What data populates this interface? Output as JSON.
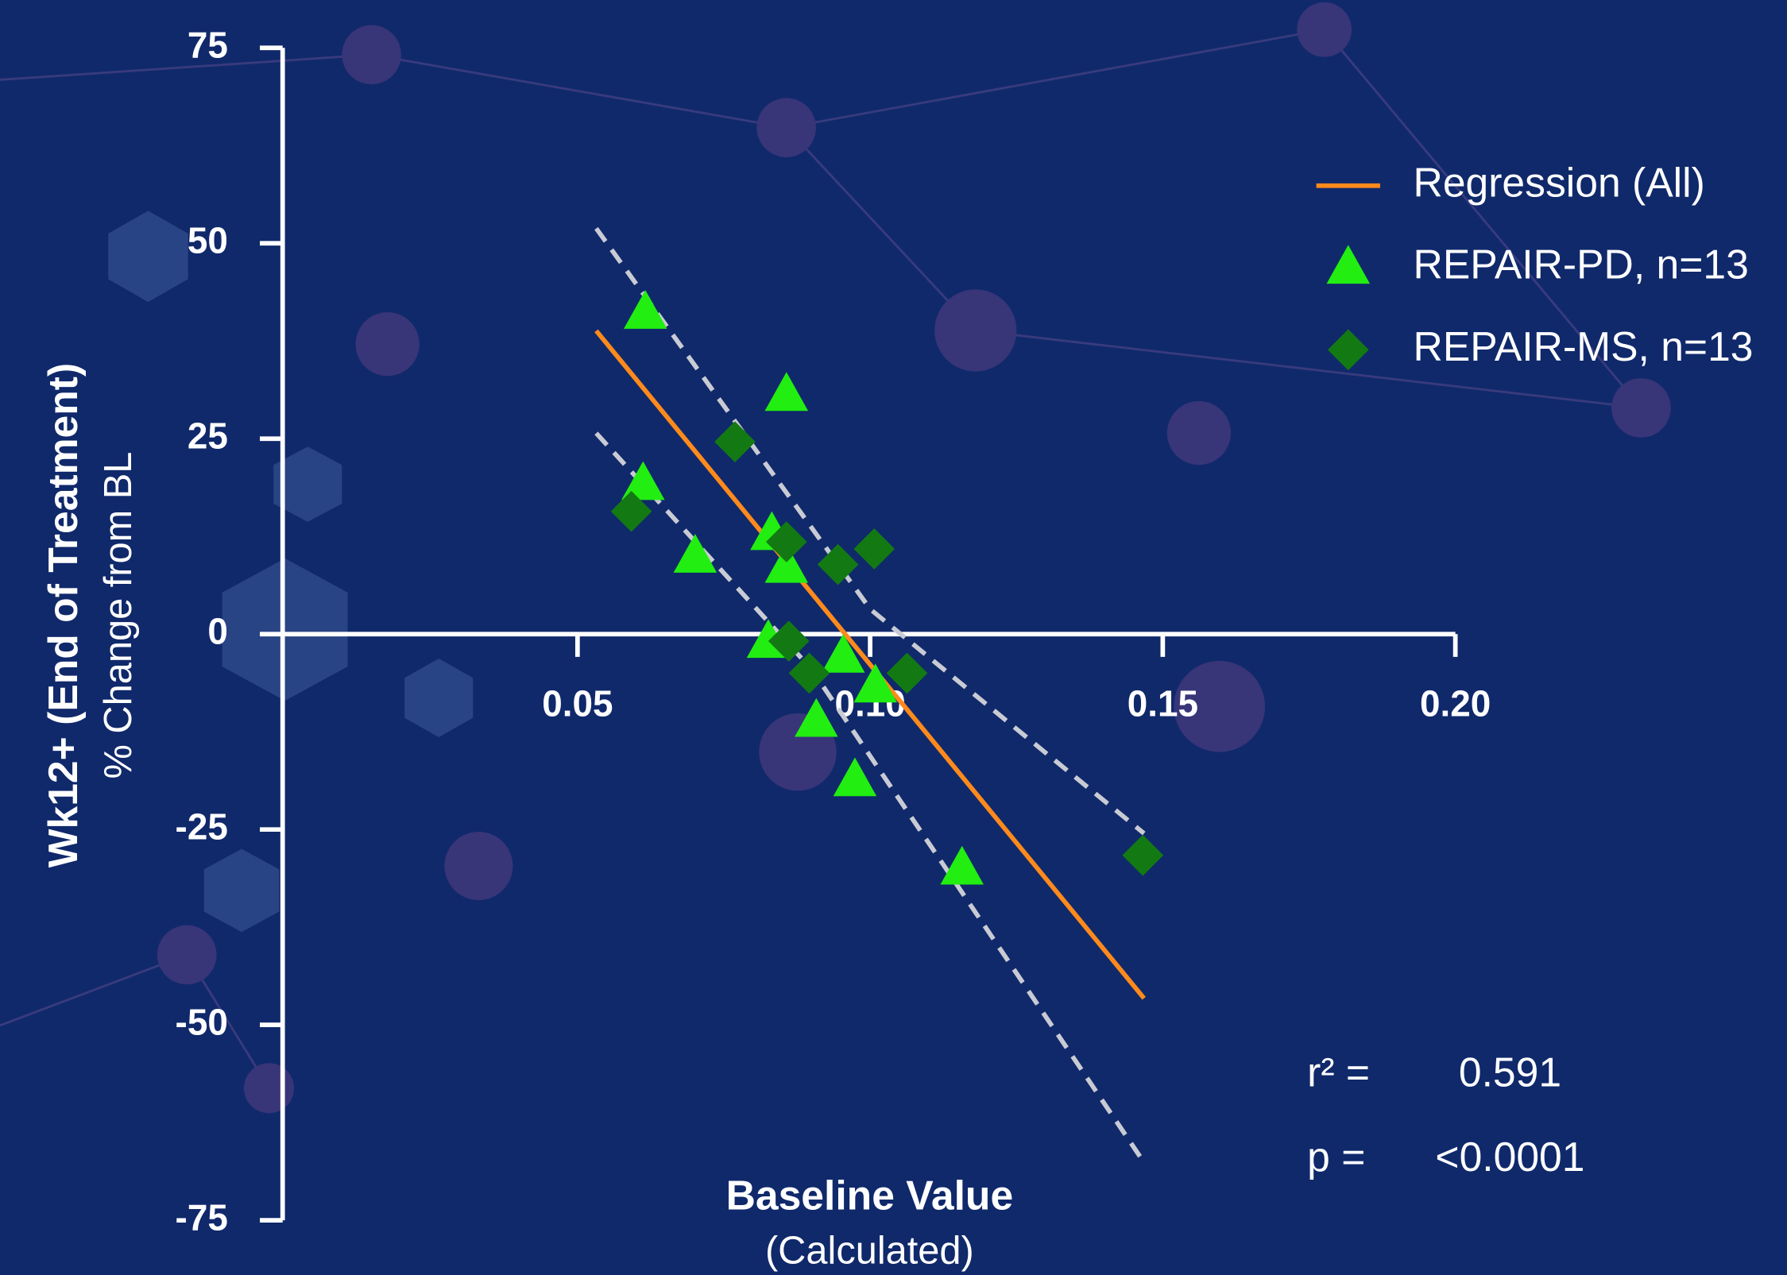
{
  "chart_data": {
    "type": "scatter",
    "xlabel": "Baseline Value",
    "xlabel_sub": "(Calculated)",
    "ylabel": "Wk12+ (End of Treatment)",
    "ylabel_sub": "% Change from BL",
    "xlim": [
      0,
      0.2
    ],
    "ylim": [
      -75,
      75
    ],
    "xticks": [
      0.05,
      {
        "value": 0.1,
        "label": "0.10"
      },
      0.15,
      {
        "value": 0.2,
        "label": "0.20"
      }
    ],
    "yticks": [
      75,
      50,
      25,
      0,
      -25,
      -50,
      -75
    ],
    "legend": "upper right",
    "series": [
      {
        "name": "REPAIR-PD, n=13",
        "color": "#22ee11",
        "marker": "triangle",
        "x": [
          0.0616,
          0.0857,
          0.0612,
          0.0701,
          0.0832,
          0.0857,
          0.0826,
          0.0954,
          0.1009,
          0.0908,
          0.0974,
          0.1157
        ],
        "values": [
          41.1,
          30.6,
          19.2,
          9.9,
          12.8,
          8.6,
          -1.0,
          -2.9,
          -6.7,
          -11.1,
          -18.7,
          -30.0
        ]
      },
      {
        "name": "REPAIR-MS, n=13",
        "color": "#137a13",
        "marker": "diamond",
        "x": [
          0.0769,
          0.0592,
          0.0857,
          0.0945,
          0.1007,
          0.0861,
          0.0896,
          0.1063,
          0.1466
        ],
        "values": [
          24.6,
          15.7,
          11.8,
          8.9,
          10.9,
          -0.9,
          -5.0,
          -5.0,
          -28.3
        ]
      }
    ],
    "fit": {
      "name": "Regression (All)",
      "color": "#ff8a1c",
      "x": [
        0.0532,
        0.1468
      ],
      "values": [
        38.8,
        -46.6
      ]
    },
    "bands": [
      {
        "color": "#c9cbd4",
        "x": [
          0.0532,
          0.1,
          0.1468
        ],
        "values": [
          51.9,
          3.2,
          -25.5
        ]
      },
      {
        "color": "#c9cbd4",
        "x": [
          0.0532,
          0.09,
          0.1468
        ],
        "values": [
          25.7,
          -4.5,
          -67.6
        ]
      }
    ],
    "stats": [
      {
        "label": "r² =",
        "value": "0.591"
      },
      {
        "label": "p =",
        "value": "<0.0001"
      }
    ]
  }
}
